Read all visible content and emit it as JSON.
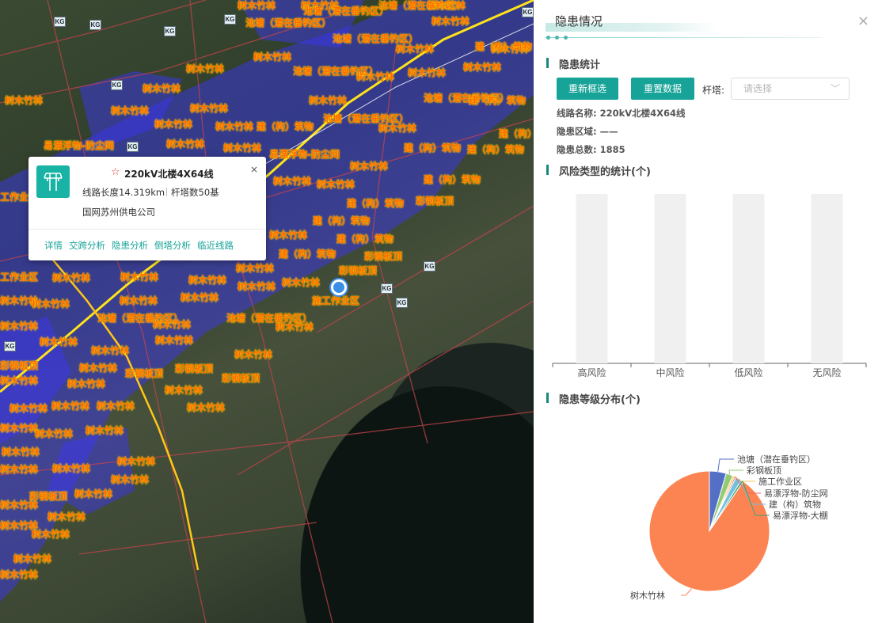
{
  "map": {
    "hazard_labels": [
      "树木竹林",
      "池塘（潜在垂钓区）",
      "建（构）筑物",
      "易漂浮物-防尘网",
      "彩钢板顶",
      "施工作业区",
      "工作业区"
    ],
    "substation_label": "KG",
    "site_label": "施工作业区"
  },
  "popup": {
    "title": "220kV北楼4X64线",
    "length": "线路长度14.319km",
    "towers": "杆塔数50基",
    "org": "国网苏州供电公司",
    "close": "×",
    "links": [
      "详情",
      "交跨分析",
      "隐患分析",
      "倒塔分析",
      "临近线路"
    ]
  },
  "panel": {
    "title": "隐患情况",
    "close": "×",
    "stats_heading": "隐患统计",
    "btn_reselect": "重新框选",
    "btn_reset": "重置数据",
    "tower_label": "杆塔:",
    "tower_placeholder": "请选择",
    "line_name": "线路名称:  220kV北楼4X64线",
    "region": "隐患区域:  ——",
    "total": "隐患总数:  1885",
    "risk_heading": "风险类型的统计(个)",
    "level_heading": "隐患等级分布(个)"
  },
  "chart_data": [
    {
      "type": "bar",
      "title": "风险类型的统计(个)",
      "categories": [
        "高风险",
        "中风险",
        "低风险",
        "无风险"
      ],
      "values": [
        0,
        0,
        0,
        0
      ],
      "background_bars": true
    },
    {
      "type": "pie",
      "title": "隐患等级分布(个)",
      "labels": [
        "池塘（潜在垂钓区）",
        "彩钢板顶",
        "施工作业区",
        "易漂浮物-防尘网",
        "建（构）筑物",
        "易漂浮物-大棚",
        "树木竹林"
      ],
      "values": [
        85,
        35,
        10,
        8,
        30,
        12,
        1705
      ],
      "colors": [
        "#5470c6",
        "#91cc75",
        "#fac858",
        "#ee6666",
        "#73c0de",
        "#3ba272",
        "#fc8452"
      ]
    }
  ]
}
